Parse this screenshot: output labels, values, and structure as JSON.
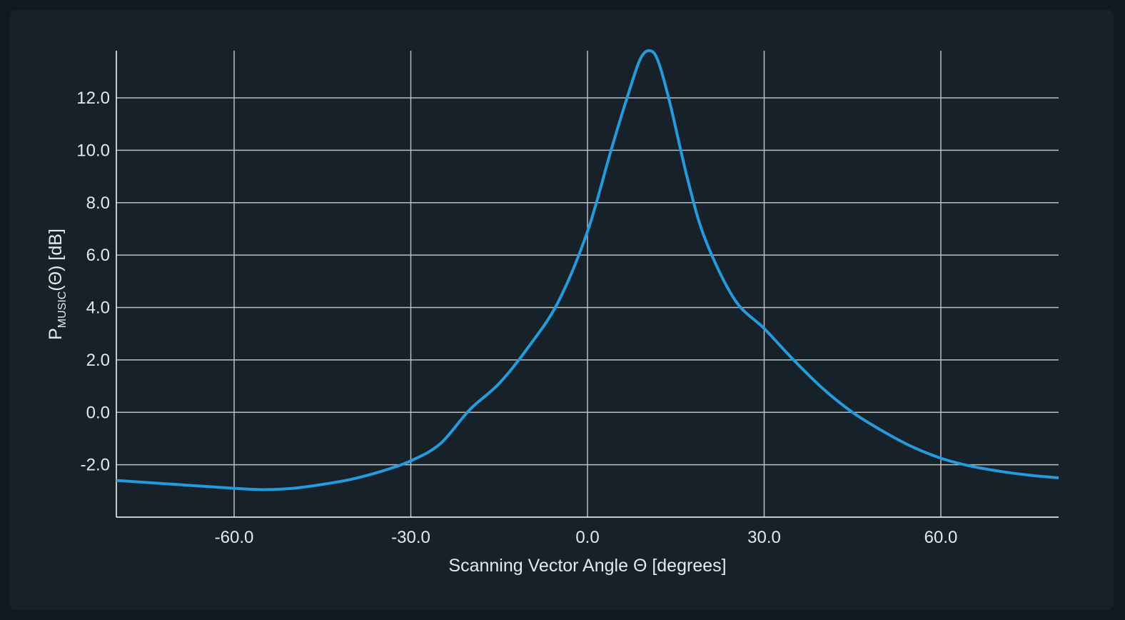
{
  "chart_data": {
    "type": "line",
    "xlabel": "Scanning Vector Angle Θ [degrees]",
    "ylabel": {
      "prefix": "P",
      "subscript": "MUSIC",
      "suffix": "(Θ)  [dB]"
    },
    "xlim": [
      -80,
      80
    ],
    "ylim": [
      -4.0,
      13.8
    ],
    "x_ticks": [
      -60,
      -30,
      0,
      30,
      60
    ],
    "x_tick_labels": [
      "-60.0",
      "-30.0",
      "0.0",
      "30.0",
      "60.0"
    ],
    "y_ticks": [
      -2,
      0,
      2,
      4,
      6,
      8,
      10,
      12
    ],
    "y_tick_labels": [
      "-2.0",
      "0.0",
      "2.0",
      "4.0",
      "6.0",
      "8.0",
      "10.0",
      "12.0"
    ],
    "grid": true,
    "series": [
      {
        "color": "#259bdb",
        "x": [
          -80,
          -70,
          -60,
          -55,
          -50,
          -45,
          -40,
          -35,
          -30,
          -25,
          -20,
          -15,
          -10,
          -5,
          0,
          4,
          7,
          9,
          10.6,
          12,
          14,
          17,
          20,
          25,
          30,
          35,
          40,
          45,
          50,
          55,
          60,
          65,
          70,
          75,
          80
        ],
        "y": [
          -2.6,
          -2.75,
          -2.9,
          -2.95,
          -2.9,
          -2.75,
          -2.55,
          -2.25,
          -1.85,
          -1.2,
          0.1,
          1.1,
          2.5,
          4.2,
          6.9,
          10.0,
          12.2,
          13.5,
          13.8,
          13.4,
          11.8,
          8.9,
          6.6,
          4.3,
          3.2,
          2.0,
          0.9,
          0.0,
          -0.7,
          -1.3,
          -1.75,
          -2.05,
          -2.25,
          -2.4,
          -2.5
        ]
      }
    ]
  }
}
